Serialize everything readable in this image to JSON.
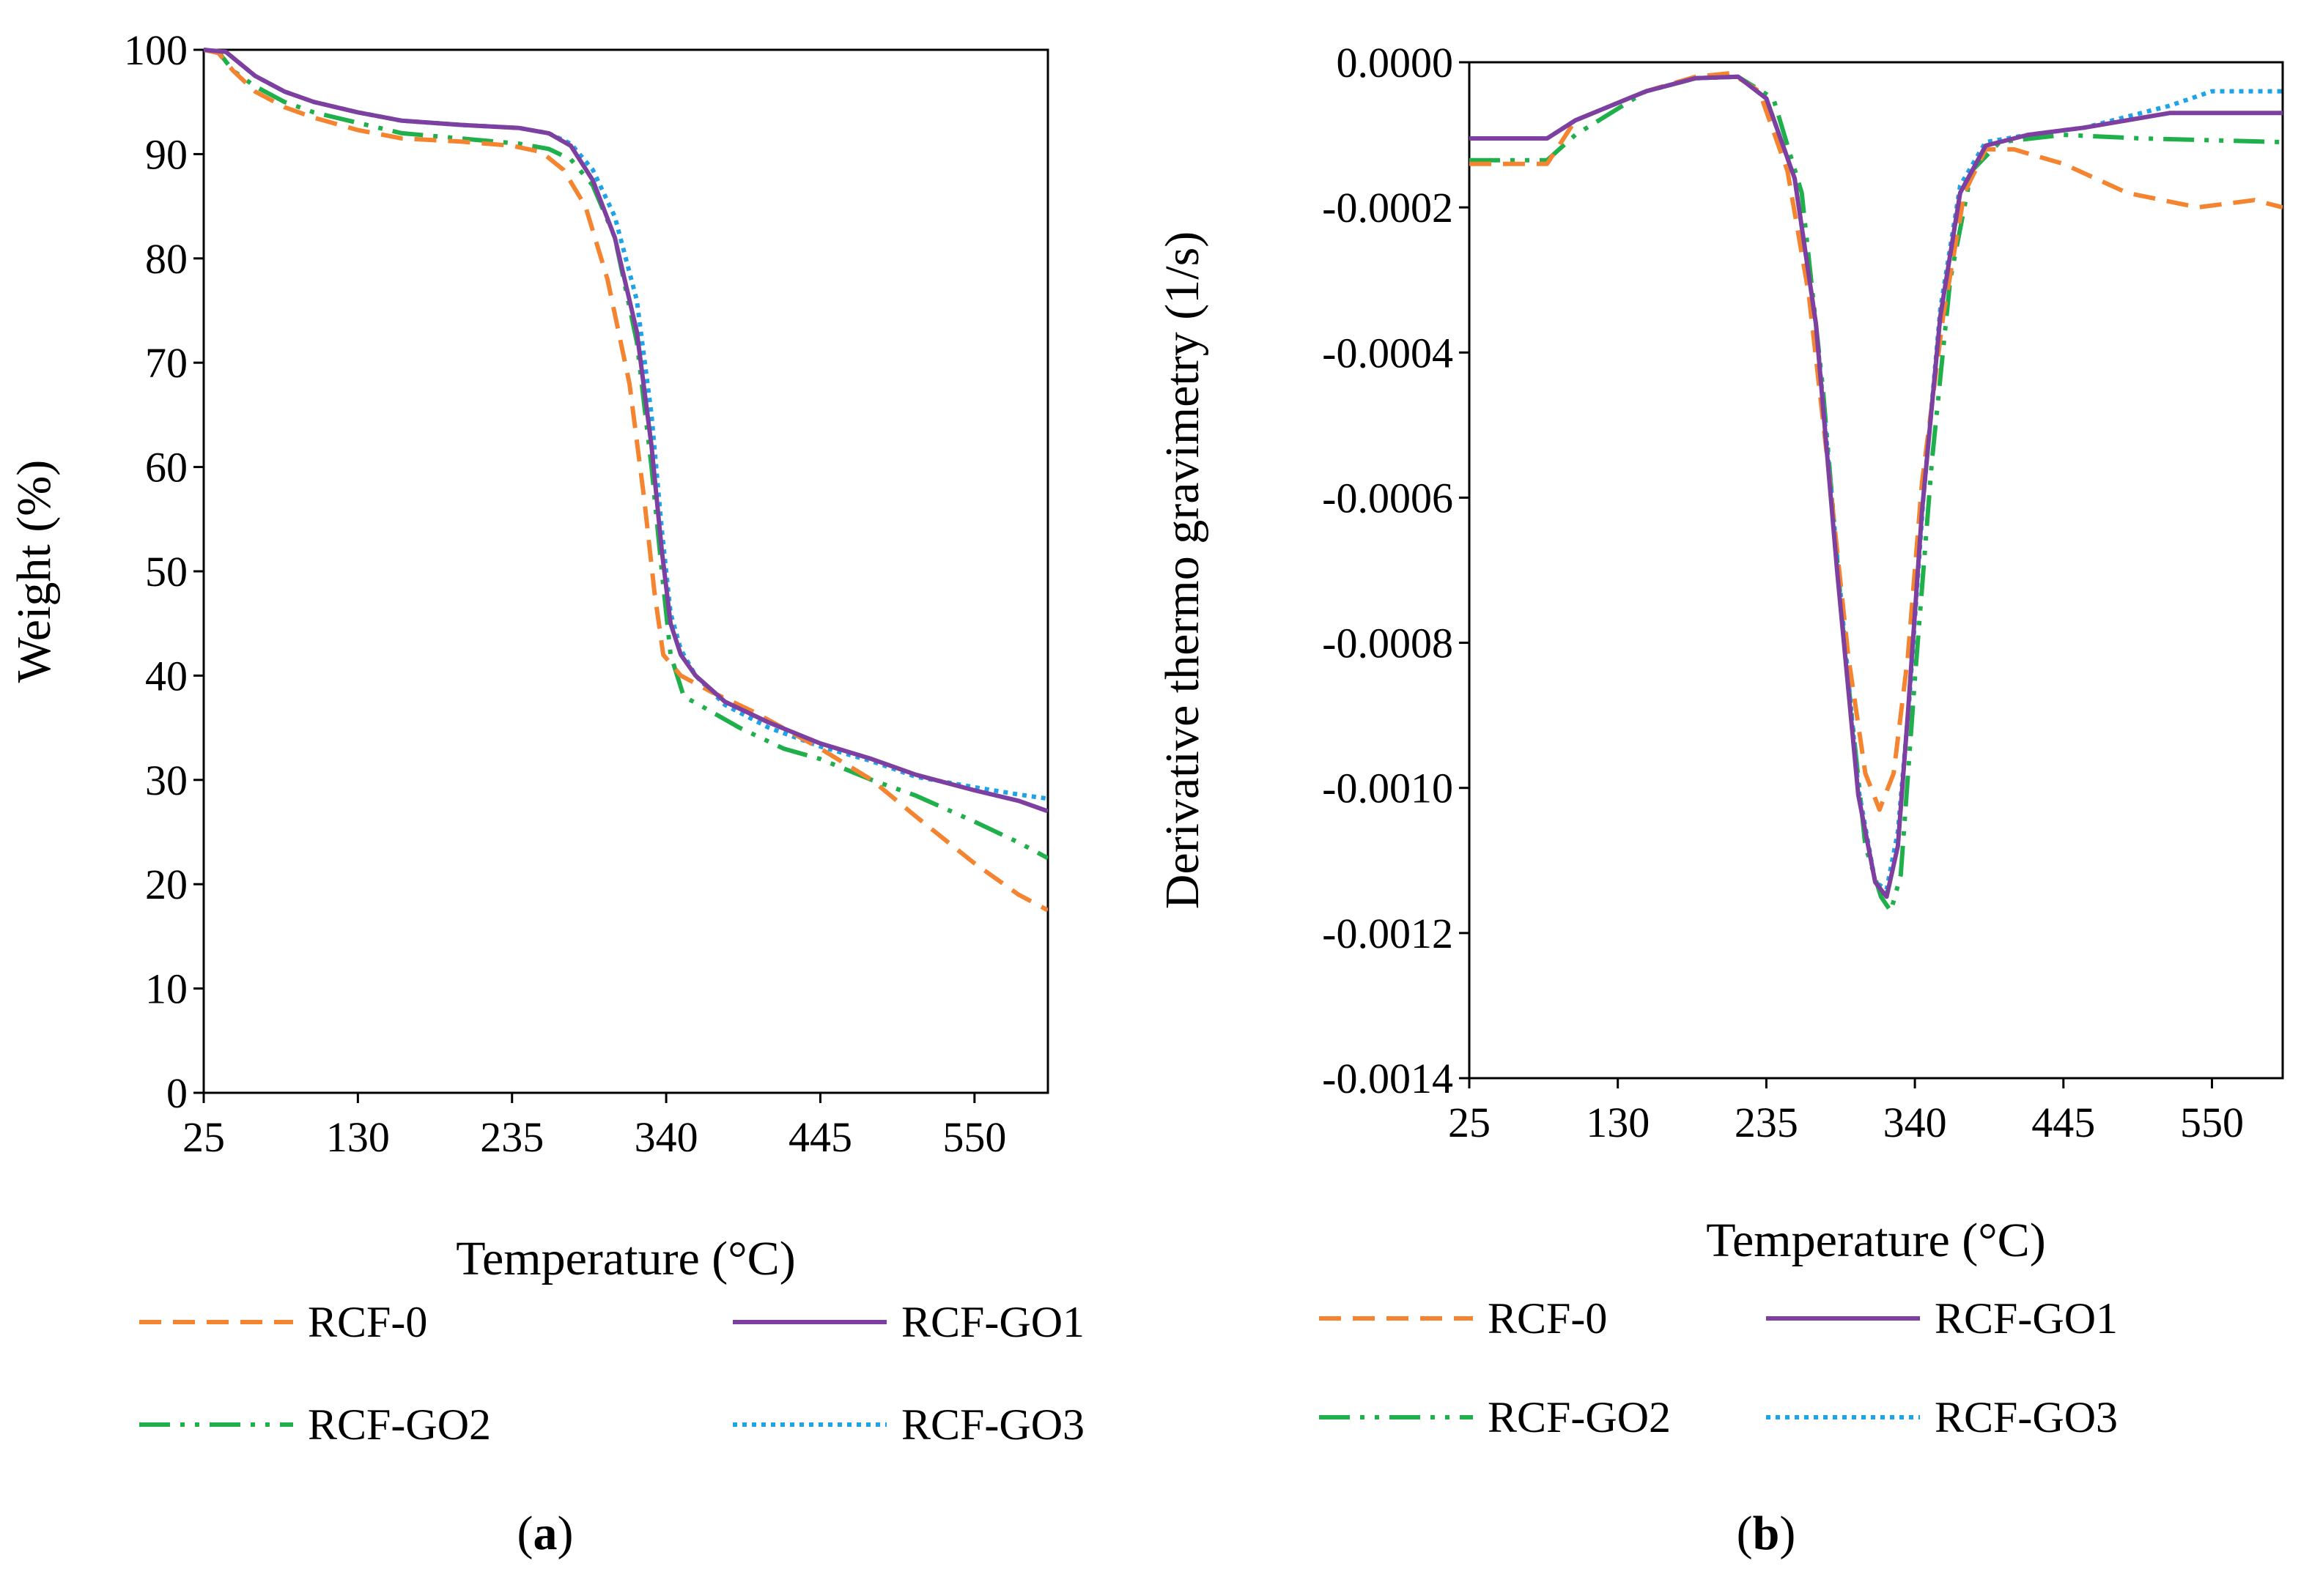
{
  "series_styles": {
    "RCF-0": {
      "color": "#F4842F",
      "dash": "30,16"
    },
    "RCF-GO1": {
      "color": "#7D3FA0",
      "dash": ""
    },
    "RCF-GO2": {
      "color": "#1FB04C",
      "dash": "42,14,6,14,6,14"
    },
    "RCF-GO3": {
      "color": "#1FA3E8",
      "dash": "6,7"
    }
  },
  "panels": [
    {
      "id": "a",
      "label_open": "(",
      "label_letter": "a",
      "label_close": ")"
    },
    {
      "id": "b",
      "label_open": "(",
      "label_letter": "b",
      "label_close": ")"
    }
  ],
  "chart_data": [
    {
      "type": "line",
      "panel": "a",
      "xlabel": "Temperature (°C)",
      "ylabel": "Weight (%)",
      "xlim": [
        25,
        600
      ],
      "ylim": [
        0,
        100
      ],
      "xticks": [
        25,
        130,
        235,
        340,
        445,
        550
      ],
      "xtick_labels": [
        "25",
        "130",
        "235",
        "340",
        "445",
        "550"
      ],
      "yticks": [
        0,
        10,
        20,
        30,
        40,
        50,
        60,
        70,
        80,
        90,
        100
      ],
      "ytick_labels": [
        "0",
        "10",
        "20",
        "30",
        "40",
        "50",
        "60",
        "70",
        "80",
        "90",
        "100"
      ],
      "legend": [
        "RCF-0",
        "RCF-GO1",
        "RCF-GO2",
        "RCF-GO3"
      ],
      "series": [
        {
          "name": "RCF-0",
          "points": [
            [
              25,
              100
            ],
            [
              35,
              99.7
            ],
            [
              45,
              98
            ],
            [
              60,
              96
            ],
            [
              80,
              94.5
            ],
            [
              100,
              93.5
            ],
            [
              130,
              92.3
            ],
            [
              160,
              91.5
            ],
            [
              200,
              91.2
            ],
            [
              235,
              90.8
            ],
            [
              255,
              90.2
            ],
            [
              270,
              88.5
            ],
            [
              285,
              85
            ],
            [
              300,
              78
            ],
            [
              315,
              68
            ],
            [
              325,
              57
            ],
            [
              332,
              48
            ],
            [
              338,
              42
            ],
            [
              350,
              40
            ],
            [
              370,
              38.5
            ],
            [
              400,
              36.5
            ],
            [
              445,
              33
            ],
            [
              480,
              30
            ],
            [
              510,
              26.5
            ],
            [
              550,
              22
            ],
            [
              580,
              19
            ],
            [
              600,
              17.5
            ]
          ]
        },
        {
          "name": "RCF-GO1",
          "points": [
            [
              25,
              100
            ],
            [
              40,
              99.8
            ],
            [
              60,
              97.5
            ],
            [
              80,
              96
            ],
            [
              100,
              95
            ],
            [
              130,
              94
            ],
            [
              160,
              93.2
            ],
            [
              200,
              92.8
            ],
            [
              240,
              92.5
            ],
            [
              260,
              92
            ],
            [
              275,
              90.8
            ],
            [
              290,
              87.5
            ],
            [
              305,
              82
            ],
            [
              320,
              73
            ],
            [
              330,
              62
            ],
            [
              337,
              52
            ],
            [
              343,
              45
            ],
            [
              350,
              42
            ],
            [
              360,
              40
            ],
            [
              380,
              37.5
            ],
            [
              410,
              35.5
            ],
            [
              445,
              33.5
            ],
            [
              480,
              32
            ],
            [
              510,
              30.5
            ],
            [
              550,
              29
            ],
            [
              580,
              28
            ],
            [
              600,
              27
            ]
          ]
        },
        {
          "name": "RCF-GO2",
          "points": [
            [
              25,
              100
            ],
            [
              35,
              99.8
            ],
            [
              45,
              98
            ],
            [
              60,
              96.5
            ],
            [
              80,
              95
            ],
            [
              100,
              94
            ],
            [
              130,
              93
            ],
            [
              160,
              92
            ],
            [
              200,
              91.5
            ],
            [
              240,
              91
            ],
            [
              260,
              90.5
            ],
            [
              275,
              89.5
            ],
            [
              290,
              87
            ],
            [
              305,
              82
            ],
            [
              320,
              72
            ],
            [
              330,
              60
            ],
            [
              337,
              50
            ],
            [
              343,
              42
            ],
            [
              352,
              38
            ],
            [
              365,
              37
            ],
            [
              390,
              35
            ],
            [
              420,
              33
            ],
            [
              445,
              32
            ],
            [
              480,
              30
            ],
            [
              510,
              28.5
            ],
            [
              550,
              26
            ],
            [
              580,
              24
            ],
            [
              600,
              22.5
            ]
          ]
        },
        {
          "name": "RCF-GO3",
          "points": [
            [
              25,
              100
            ],
            [
              40,
              99.8
            ],
            [
              60,
              97.5
            ],
            [
              80,
              96
            ],
            [
              100,
              95
            ],
            [
              130,
              94
            ],
            [
              160,
              93.2
            ],
            [
              200,
              92.8
            ],
            [
              240,
              92.5
            ],
            [
              260,
              92
            ],
            [
              275,
              91
            ],
            [
              290,
              88.5
            ],
            [
              305,
              84
            ],
            [
              320,
              76
            ],
            [
              330,
              65
            ],
            [
              337,
              54
            ],
            [
              343,
              46
            ],
            [
              350,
              42.5
            ],
            [
              360,
              40
            ],
            [
              380,
              37.2
            ],
            [
              410,
              35
            ],
            [
              445,
              33.2
            ],
            [
              480,
              31.8
            ],
            [
              510,
              30.3
            ],
            [
              550,
              29.3
            ],
            [
              580,
              28.6
            ],
            [
              600,
              28.2
            ]
          ]
        }
      ]
    },
    {
      "type": "line",
      "panel": "b",
      "xlabel": "Temperature (°C)",
      "ylabel": "Derivative thermo gravimetry (1/s)",
      "xlim": [
        25,
        600
      ],
      "ylim": [
        -0.0014,
        0
      ],
      "xticks": [
        25,
        130,
        235,
        340,
        445,
        550
      ],
      "xtick_labels": [
        "25",
        "130",
        "235",
        "340",
        "445",
        "550"
      ],
      "yticks": [
        0,
        -0.0002,
        -0.0004,
        -0.0006,
        -0.0008,
        -0.001,
        -0.0012,
        -0.0014
      ],
      "ytick_labels": [
        "0.0000",
        "-0.0002",
        "-0.0004",
        "-0.0006",
        "-0.0008",
        "-0.0010",
        "-0.0012",
        "-0.0014"
      ],
      "legend": [
        "RCF-0",
        "RCF-GO1",
        "RCF-GO2",
        "RCF-GO3"
      ],
      "series": [
        {
          "name": "RCF-0",
          "points": [
            [
              25,
              -0.00014
            ],
            [
              80,
              -0.00014
            ],
            [
              100,
              -8e-05
            ],
            [
              150,
              -4e-05
            ],
            [
              185,
              -2e-05
            ],
            [
              210,
              -1.5e-05
            ],
            [
              230,
              -4e-05
            ],
            [
              250,
              -0.00015
            ],
            [
              265,
              -0.00032
            ],
            [
              280,
              -0.00058
            ],
            [
              293,
              -0.00082
            ],
            [
              305,
              -0.00098
            ],
            [
              315,
              -0.00103
            ],
            [
              325,
              -0.00098
            ],
            [
              335,
              -0.00082
            ],
            [
              345,
              -0.00058
            ],
            [
              360,
              -0.00035
            ],
            [
              375,
              -0.00018
            ],
            [
              390,
              -0.00012
            ],
            [
              410,
              -0.00012
            ],
            [
              445,
              -0.00014
            ],
            [
              490,
              -0.00018
            ],
            [
              540,
              -0.0002
            ],
            [
              580,
              -0.00019
            ],
            [
              600,
              -0.0002
            ]
          ]
        },
        {
          "name": "RCF-GO1",
          "points": [
            [
              25,
              -0.000105
            ],
            [
              80,
              -0.000105
            ],
            [
              100,
              -8e-05
            ],
            [
              150,
              -4e-05
            ],
            [
              185,
              -2.2e-05
            ],
            [
              215,
              -2e-05
            ],
            [
              235,
              -5e-05
            ],
            [
              255,
              -0.00016
            ],
            [
              270,
              -0.00036
            ],
            [
              285,
              -0.0007
            ],
            [
              300,
              -0.00101
            ],
            [
              312,
              -0.00113
            ],
            [
              320,
              -0.00115
            ],
            [
              328,
              -0.00108
            ],
            [
              335,
              -0.0009
            ],
            [
              345,
              -0.00062
            ],
            [
              358,
              -0.00035
            ],
            [
              372,
              -0.00018
            ],
            [
              390,
              -0.000115
            ],
            [
              420,
              -0.0001
            ],
            [
              460,
              -9e-05
            ],
            [
              520,
              -7e-05
            ],
            [
              600,
              -7e-05
            ]
          ]
        },
        {
          "name": "RCF-GO2",
          "points": [
            [
              25,
              -0.000135
            ],
            [
              80,
              -0.000135
            ],
            [
              100,
              -0.0001
            ],
            [
              150,
              -4e-05
            ],
            [
              185,
              -2.2e-05
            ],
            [
              215,
              -2e-05
            ],
            [
              240,
              -5e-05
            ],
            [
              260,
              -0.00018
            ],
            [
              275,
              -0.00045
            ],
            [
              290,
              -0.0008
            ],
            [
              305,
              -0.00108
            ],
            [
              316,
              -0.00115
            ],
            [
              323,
              -0.00117
            ],
            [
              330,
              -0.00112
            ],
            [
              340,
              -0.00085
            ],
            [
              352,
              -0.00055
            ],
            [
              365,
              -0.0003
            ],
            [
              380,
              -0.00015
            ],
            [
              400,
              -0.00011
            ],
            [
              445,
              -0.0001
            ],
            [
              500,
              -0.000105
            ],
            [
              600,
              -0.00011
            ]
          ]
        },
        {
          "name": "RCF-GO3",
          "points": [
            [
              25,
              -0.000105
            ],
            [
              80,
              -0.000105
            ],
            [
              100,
              -8e-05
            ],
            [
              150,
              -4e-05
            ],
            [
              185,
              -2.2e-05
            ],
            [
              215,
              -2e-05
            ],
            [
              235,
              -5e-05
            ],
            [
              255,
              -0.00016
            ],
            [
              270,
              -0.00036
            ],
            [
              285,
              -0.00068
            ],
            [
              300,
              -0.001
            ],
            [
              312,
              -0.00113
            ],
            [
              320,
              -0.00114
            ],
            [
              328,
              -0.00106
            ],
            [
              336,
              -0.00088
            ],
            [
              346,
              -0.0006
            ],
            [
              358,
              -0.00034
            ],
            [
              372,
              -0.00017
            ],
            [
              390,
              -0.00011
            ],
            [
              420,
              -0.0001
            ],
            [
              460,
              -9e-05
            ],
            [
              520,
              -6e-05
            ],
            [
              550,
              -4e-05
            ],
            [
              600,
              -4e-05
            ]
          ]
        }
      ]
    }
  ]
}
